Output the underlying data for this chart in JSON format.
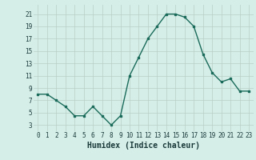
{
  "x": [
    0,
    1,
    2,
    3,
    4,
    5,
    6,
    7,
    8,
    9,
    10,
    11,
    12,
    13,
    14,
    15,
    16,
    17,
    18,
    19,
    20,
    21,
    22,
    23
  ],
  "y": [
    8,
    8,
    7,
    6,
    4.5,
    4.5,
    6,
    4.5,
    3,
    4.5,
    11,
    14,
    17,
    19,
    21,
    21,
    20.5,
    19,
    14.5,
    11.5,
    10,
    10.5,
    8.5,
    8.5
  ],
  "line_color": "#1a6b5a",
  "marker": "s",
  "marker_size": 2,
  "linewidth": 1.0,
  "background_color": "#d6eee8",
  "grid_color": "#b8cfc8",
  "xlabel": "Humidex (Indice chaleur)",
  "xlabel_fontsize": 7,
  "ylabel_ticks": [
    3,
    5,
    7,
    9,
    11,
    13,
    15,
    17,
    19,
    21
  ],
  "xlim": [
    -0.5,
    23.5
  ],
  "ylim": [
    2,
    22.5
  ],
  "xticks": [
    0,
    1,
    2,
    3,
    4,
    5,
    6,
    7,
    8,
    9,
    10,
    11,
    12,
    13,
    14,
    15,
    16,
    17,
    18,
    19,
    20,
    21,
    22,
    23
  ],
  "tick_fontsize": 5.5
}
